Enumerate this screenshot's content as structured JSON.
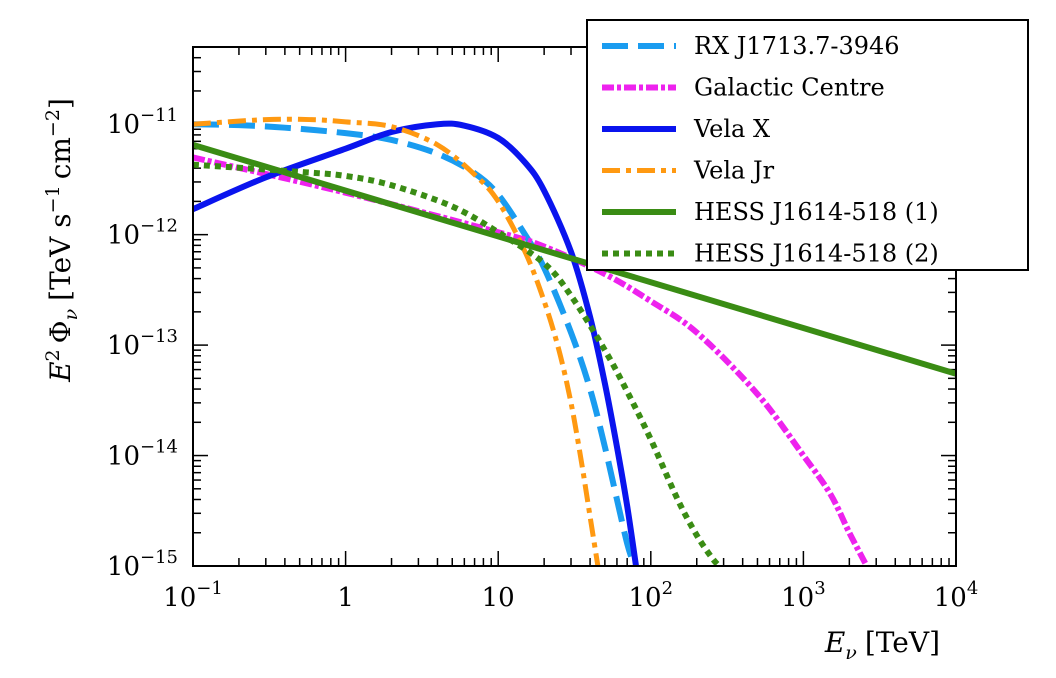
{
  "chart_data": {
    "type": "line",
    "title": "",
    "xlabel": {
      "symbol": "E",
      "sub": "ν",
      "unit": "[TeV]"
    },
    "ylabel": {
      "symbol": "E",
      "sup": "2",
      "phi": "Φ",
      "sub": "ν",
      "unit_a": "[TeV s",
      "unit_b": "cm",
      "unit_c": "]",
      "exp_a": "−1",
      "exp_b": "−2"
    },
    "xscale": "log",
    "yscale": "log",
    "xlim": [
      0.1,
      10000
    ],
    "ylim": [
      1e-15,
      5e-11
    ],
    "x_ticks": [
      {
        "value": 0.1,
        "base": "10",
        "exp": "−1"
      },
      {
        "value": 1,
        "base": "1",
        "exp": ""
      },
      {
        "value": 10,
        "base": "10",
        "exp": ""
      },
      {
        "value": 100,
        "base": "10",
        "exp": "2"
      },
      {
        "value": 1000,
        "base": "10",
        "exp": "3"
      },
      {
        "value": 10000,
        "base": "10",
        "exp": "4"
      }
    ],
    "y_ticks": [
      {
        "value": 1e-11,
        "base": "10",
        "exp": "−11"
      },
      {
        "value": 1e-12,
        "base": "10",
        "exp": "−12"
      },
      {
        "value": 1e-13,
        "base": "10",
        "exp": "−13"
      },
      {
        "value": 1e-14,
        "base": "10",
        "exp": "−14"
      },
      {
        "value": 1e-15,
        "base": "10",
        "exp": "−15"
      }
    ],
    "legend_position": "top-right",
    "series": [
      {
        "name": "RX J1713.7-3946",
        "color": "#1a9cf0",
        "style": "dashed",
        "x": [
          0.1,
          0.2,
          0.4,
          1,
          2,
          4,
          7,
          10,
          15,
          20,
          30,
          40,
          50,
          60,
          70,
          78
        ],
        "y": [
          1e-11,
          9.8e-12,
          9.3e-12,
          8.3e-12,
          7.2e-12,
          5.4e-12,
          3.6e-12,
          2.3e-12,
          1e-12,
          5e-13,
          1.3e-13,
          4e-14,
          1.2e-14,
          4e-15,
          1.6e-15,
          1e-15
        ]
      },
      {
        "name": "Galactic Centre",
        "color": "#ee22ee",
        "style": "dash-dot-dense",
        "x": [
          0.1,
          1,
          10,
          20,
          50,
          100,
          200,
          500,
          1000,
          1500,
          2000,
          2600
        ],
        "y": [
          5e-12,
          2.4e-12,
          1.05e-12,
          7.8e-13,
          4.4e-13,
          2.5e-13,
          1.3e-13,
          3.6e-14,
          1e-14,
          4.5e-15,
          2e-15,
          1e-15
        ]
      },
      {
        "name": "Vela X",
        "color": "#0a14ee",
        "style": "solid",
        "x": [
          0.1,
          0.3,
          1,
          2,
          4,
          6,
          10,
          15,
          20,
          30,
          40,
          50,
          60,
          70,
          80
        ],
        "y": [
          1.7e-12,
          3.3e-12,
          6e-12,
          8.5e-12,
          1e-11,
          9.7e-12,
          7.5e-12,
          4.5e-12,
          2.5e-12,
          7e-13,
          1.8e-13,
          4.5e-14,
          1.2e-14,
          3.5e-15,
          1e-15
        ]
      },
      {
        "name": "Vela Jr",
        "color": "#ff9911",
        "style": "dash-dot",
        "x": [
          0.1,
          0.3,
          0.6,
          1,
          2,
          4,
          7,
          10,
          15,
          20,
          25,
          30,
          35,
          40,
          45
        ],
        "y": [
          1e-11,
          1.1e-11,
          1.1e-11,
          1.05e-11,
          9.5e-12,
          6.5e-12,
          3.5e-12,
          2e-12,
          7e-13,
          2.5e-13,
          9e-14,
          3e-14,
          9e-15,
          2.8e-15,
          1e-15
        ]
      },
      {
        "name": "HESS J1614-518 (1)",
        "color": "#3a8c14",
        "style": "solid",
        "x": [
          0.1,
          10000
        ],
        "y": [
          6.5e-12,
          5.5e-14
        ]
      },
      {
        "name": "HESS J1614-518 (2)",
        "color": "#3a8c14",
        "style": "dotted",
        "x": [
          0.1,
          0.5,
          1,
          2,
          5,
          10,
          20,
          30,
          50,
          70,
          100,
          150,
          200,
          250,
          280
        ],
        "y": [
          4.3e-12,
          3.7e-12,
          3.4e-12,
          2.8e-12,
          1.8e-12,
          1.05e-12,
          5.5e-13,
          2.8e-13,
          9e-14,
          3.8e-14,
          1.4e-14,
          4e-15,
          1.9e-15,
          1.2e-15,
          1e-15
        ]
      }
    ]
  }
}
